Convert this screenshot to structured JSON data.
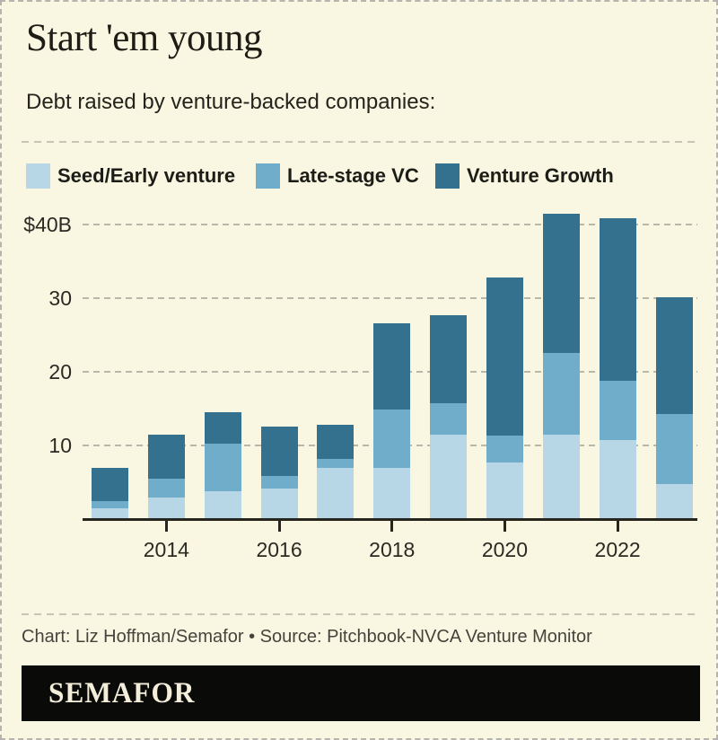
{
  "header": {
    "title": "Start 'em young",
    "subtitle": "Debt raised by venture-backed companies:"
  },
  "legend": [
    {
      "label": "Seed/Early venture",
      "color": "#b7d6e6"
    },
    {
      "label": "Late-stage VC",
      "color": "#6fadcb"
    },
    {
      "label": "Venture Growth",
      "color": "#34718f"
    }
  ],
  "chart_data": {
    "type": "bar",
    "stacked": true,
    "title": "Start 'em young",
    "subtitle": "Debt raised by venture-backed companies:",
    "unit": "$B",
    "categories": [
      2013,
      2014,
      2015,
      2016,
      2017,
      2018,
      2019,
      2020,
      2021,
      2022,
      2023
    ],
    "series": [
      {
        "name": "Seed/Early venture",
        "color": "#b7d6e6",
        "values": [
          1.4,
          2.9,
          3.8,
          4.1,
          6.9,
          6.9,
          11.4,
          7.7,
          11.4,
          10.7,
          4.7
        ]
      },
      {
        "name": "Late-stage VC",
        "color": "#6fadcb",
        "values": [
          1.0,
          2.6,
          6.4,
          1.8,
          1.3,
          7.9,
          4.3,
          3.6,
          11.1,
          8.0,
          9.6
        ]
      },
      {
        "name": "Venture Growth",
        "color": "#34718f",
        "values": [
          4.5,
          6.0,
          4.3,
          6.6,
          4.6,
          11.7,
          12.0,
          21.4,
          18.9,
          22.1,
          15.8
        ]
      }
    ],
    "totals": [
      6.9,
      11.5,
      14.5,
      12.5,
      12.8,
      26.5,
      27.7,
      32.7,
      41.4,
      40.8,
      30.1
    ],
    "y_ticks": [
      {
        "value": 40,
        "label": "$40B"
      },
      {
        "value": 30,
        "label": "30"
      },
      {
        "value": 20,
        "label": "20"
      },
      {
        "value": 10,
        "label": "10"
      }
    ],
    "x_tick_labels": [
      "2014",
      "2016",
      "2018",
      "2020",
      "2022"
    ],
    "ylim": [
      0,
      43
    ],
    "grid": "horizontal-dashed",
    "legend_position": "top"
  },
  "footer": {
    "credit": "Chart: Liz Hoffman/Semafor • Source: Pitchbook-NVCA Venture Monitor",
    "brand": "SEMAFOR"
  },
  "colors": {
    "background": "#f9f6e2",
    "seed_early": "#b7d6e6",
    "late_stage": "#6fadcb",
    "venture_growth": "#34718f",
    "gridline": "#b9b7aa",
    "axis": "#26251e",
    "logo_bar": "#0a0a08",
    "logo_text": "#f3edda"
  }
}
